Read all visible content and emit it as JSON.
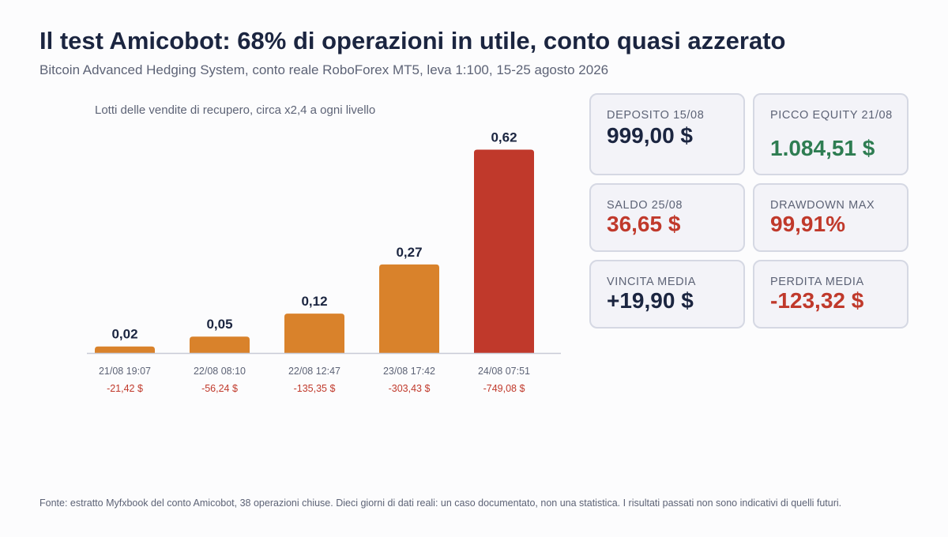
{
  "header": {
    "title": "Il test Amicobot: 68% di operazioni in utile, conto quasi azzerato",
    "subtitle": "Bitcoin Advanced Hedging System, conto reale RoboForex MT5, leva 1:100, 15-25 agosto 2026"
  },
  "chart_data": {
    "type": "bar",
    "title": "Lotti delle vendite di recupero, circa x2,4 a ogni livello",
    "xlabel": "",
    "ylabel": "",
    "ylim": [
      0,
      0.65
    ],
    "grid": false,
    "categories": [
      "21/08 19:07",
      "22/08 08:10",
      "22/08 12:47",
      "23/08 17:42",
      "24/08 07:51"
    ],
    "values": [
      0.02,
      0.05,
      0.12,
      0.27,
      0.62
    ],
    "value_labels": [
      "0,02",
      "0,05",
      "0,12",
      "0,27",
      "0,62"
    ],
    "results": [
      "-21,42 $",
      "-56,24 $",
      "-135,35 $",
      "-303,43 $",
      "-749,08 $"
    ],
    "bar_colors": [
      "#d9822b",
      "#d9822b",
      "#d9822b",
      "#d9822b",
      "#c0392b"
    ],
    "result_color": "#c0392b"
  },
  "cards": [
    {
      "label": "DEPOSITO 15/08",
      "value": "999,00 $",
      "color": "#1b2540"
    },
    {
      "label": "PICCO EQUITY 21/08",
      "value": "1.084,51 $",
      "color": "#2e7d52"
    },
    {
      "label": "SALDO 25/08",
      "value": "36,65 $",
      "color": "#c0392b"
    },
    {
      "label": "DRAWDOWN MAX",
      "value": "99,91%",
      "color": "#c0392b"
    },
    {
      "label": "VINCITA MEDIA",
      "value": "+19,90 $",
      "color": "#1b2540"
    },
    {
      "label": "PERDITA MEDIA",
      "value": "-123,32 $",
      "color": "#c0392b"
    }
  ],
  "footer": {
    "text": "Fonte: estratto Myfxbook del conto Amicobot, 38 operazioni chiuse. Dieci giorni di dati reali: un caso documentato, non una statistica. I risultati passati non sono indicativi di quelli futuri."
  }
}
